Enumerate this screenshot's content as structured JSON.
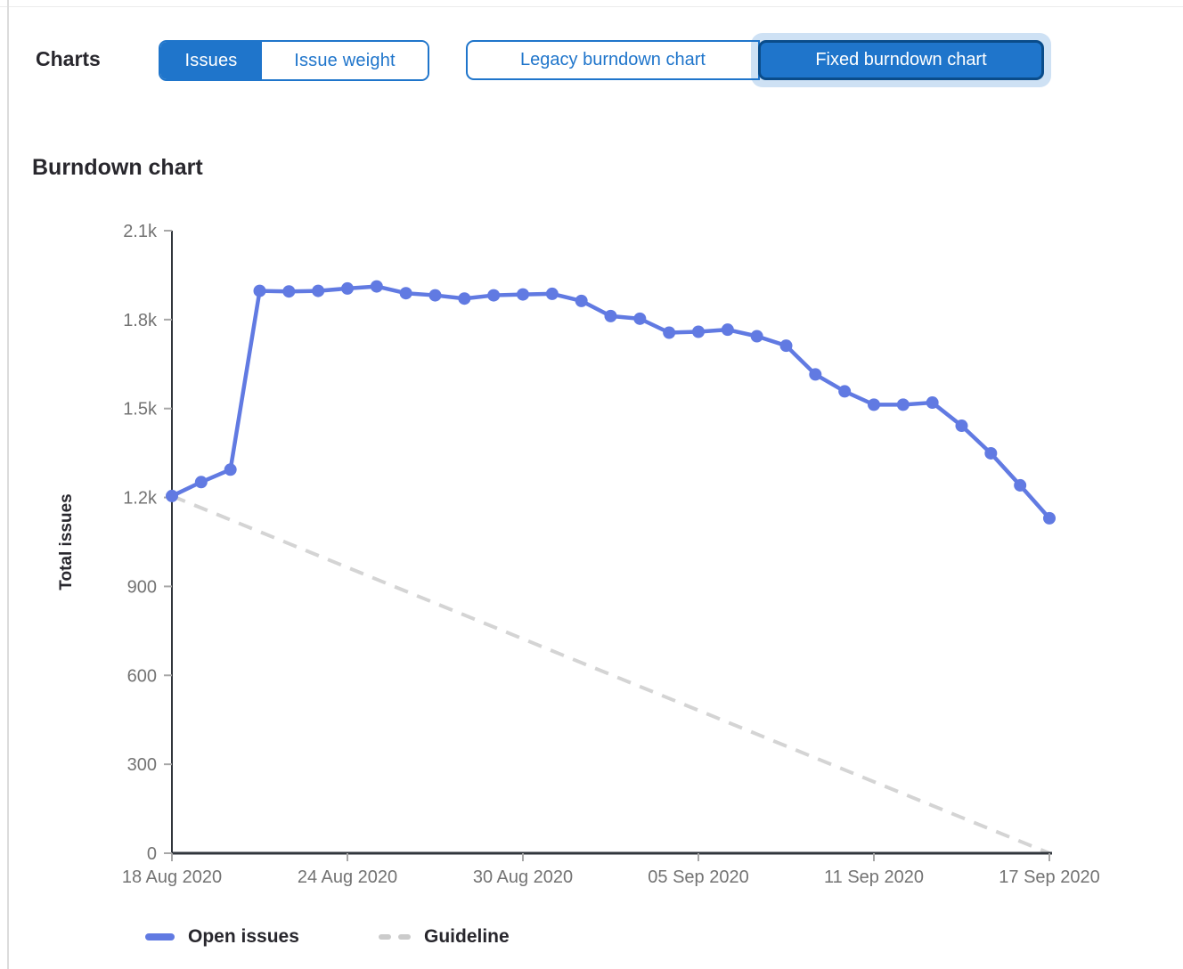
{
  "toolbar": {
    "charts_label": "Charts",
    "issue_toggle": {
      "options": [
        "Issues",
        "Issue weight"
      ],
      "selected": "Issues"
    },
    "chart_toggle": {
      "options": [
        "Legacy burndown chart",
        "Fixed burndown chart"
      ],
      "selected": "Fixed burndown chart"
    }
  },
  "section": {
    "title": "Burndown chart"
  },
  "chart_data": {
    "type": "line",
    "title": "Burndown chart",
    "xlabel": "",
    "ylabel": "Total issues",
    "ylim": [
      0,
      2100
    ],
    "grid": false,
    "legend_position": "bottom",
    "y_ticks": [
      {
        "value": 0,
        "label": "0"
      },
      {
        "value": 300,
        "label": "300"
      },
      {
        "value": 600,
        "label": "600"
      },
      {
        "value": 900,
        "label": "900"
      },
      {
        "value": 1200,
        "label": "1.2k"
      },
      {
        "value": 1500,
        "label": "1.5k"
      },
      {
        "value": 1800,
        "label": "1.8k"
      },
      {
        "value": 2100,
        "label": "2.1k"
      }
    ],
    "x_ticks": [
      {
        "index": 0,
        "label": "18 Aug 2020"
      },
      {
        "index": 6,
        "label": "24 Aug 2020"
      },
      {
        "index": 12,
        "label": "30 Aug 2020"
      },
      {
        "index": 18,
        "label": "05 Sep 2020"
      },
      {
        "index": 24,
        "label": "11 Sep 2020"
      },
      {
        "index": 30,
        "label": "17 Sep 2020"
      }
    ],
    "x": [
      "18 Aug 2020",
      "19 Aug 2020",
      "20 Aug 2020",
      "21 Aug 2020",
      "22 Aug 2020",
      "23 Aug 2020",
      "24 Aug 2020",
      "25 Aug 2020",
      "26 Aug 2020",
      "27 Aug 2020",
      "28 Aug 2020",
      "29 Aug 2020",
      "30 Aug 2020",
      "31 Aug 2020",
      "01 Sep 2020",
      "02 Sep 2020",
      "03 Sep 2020",
      "04 Sep 2020",
      "05 Sep 2020",
      "06 Sep 2020",
      "07 Sep 2020",
      "08 Sep 2020",
      "09 Sep 2020",
      "10 Sep 2020",
      "11 Sep 2020",
      "12 Sep 2020",
      "13 Sep 2020",
      "14 Sep 2020",
      "15 Sep 2020",
      "16 Sep 2020",
      "17 Sep 2020"
    ],
    "series": [
      {
        "name": "Open issues",
        "style": "solid",
        "color": "#617ae2",
        "values": [
          1205,
          1252,
          1294,
          1897,
          1895,
          1897,
          1905,
          1912,
          1889,
          1882,
          1871,
          1882,
          1885,
          1887,
          1863,
          1812,
          1803,
          1756,
          1759,
          1766,
          1744,
          1712,
          1615,
          1558,
          1513,
          1513,
          1520,
          1442,
          1349,
          1241,
          1130
        ]
      },
      {
        "name": "Guideline",
        "style": "dashed",
        "color": "#d4d4d4",
        "start_value": 1205,
        "end_value": 0
      }
    ]
  },
  "colors": {
    "accent_blue": "#1f75cb",
    "selected_border": "#0a4c8a",
    "focus_halo": "rgba(31,117,203,0.22)",
    "series_blue": "#617ae2",
    "guideline_gray": "#d4d4d4",
    "axis_line": "#31363c",
    "tick_mark": "#a7a7a7",
    "tick_text": "#737373",
    "text_dark": "#28272d"
  }
}
